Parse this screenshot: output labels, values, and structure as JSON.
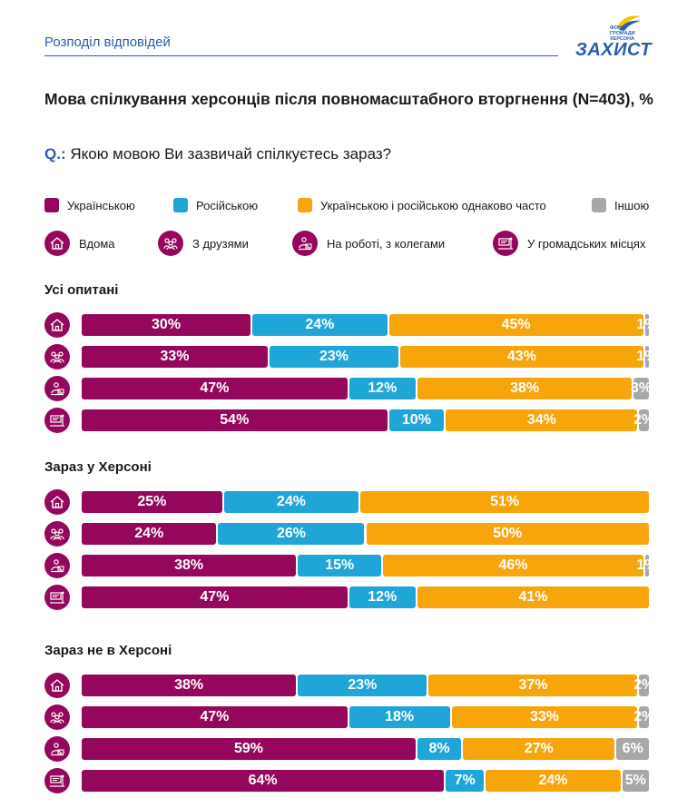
{
  "header": {
    "title": "Розподіл відповідей"
  },
  "logo": {
    "small_lines": [
      "ФОНД",
      "ГРОМАДИ",
      "ХЕРСОНА"
    ],
    "name": "ЗАХИСТ"
  },
  "title": "Мова спілкування херсонців після повномасштабного вторгнення (N=403), %",
  "question": {
    "prefix": "Q.:",
    "text": "Якою мовою Ви зазвичай спілкуєтесь зараз?"
  },
  "colors": {
    "ukrainian": "#95075c",
    "russian": "#1fa5d8",
    "both": "#f8a50c",
    "other": "#a7a7a8",
    "accent": "#2a5db0"
  },
  "legend": {
    "languages": [
      {
        "label": "Українською",
        "color": "#95075c"
      },
      {
        "label": "Російською",
        "color": "#1fa5d8"
      },
      {
        "label": "Українською і російською однаково часто",
        "color": "#f8a50c"
      },
      {
        "label": "Іншою",
        "color": "#a7a7a8"
      }
    ],
    "places": [
      {
        "label": "Вдома",
        "icon": "home-icon"
      },
      {
        "label": "З друзями",
        "icon": "friends-icon"
      },
      {
        "label": "На роботі, з колегами",
        "icon": "work-icon"
      },
      {
        "label": "У громадських місцях",
        "icon": "public-places-icon"
      }
    ]
  },
  "chart_data": {
    "type": "bar",
    "orientation": "horizontal",
    "stacked": true,
    "unit": "%",
    "series_names": [
      "Українською",
      "Російською",
      "Українською і російською однаково часто",
      "Іншою"
    ],
    "categories": [
      "Вдома",
      "З друзями",
      "На роботі, з колегами",
      "У громадських місцях"
    ],
    "groups": [
      {
        "title": "Усі опитані",
        "rows": [
          {
            "category": "Вдома",
            "values": [
              30,
              24,
              45,
              1
            ]
          },
          {
            "category": "З друзями",
            "values": [
              33,
              23,
              43,
              1
            ]
          },
          {
            "category": "На роботі, з колегами",
            "values": [
              47,
              12,
              38,
              3
            ]
          },
          {
            "category": "У громадських місцях",
            "values": [
              54,
              10,
              34,
              2
            ]
          }
        ]
      },
      {
        "title": "Зараз у Херсоні",
        "rows": [
          {
            "category": "Вдома",
            "values": [
              25,
              24,
              51,
              0
            ]
          },
          {
            "category": "З друзями",
            "values": [
              24,
              26,
              50,
              0
            ]
          },
          {
            "category": "На роботі, з колегами",
            "values": [
              38,
              15,
              46,
              1
            ]
          },
          {
            "category": "У громадських місцях",
            "values": [
              47,
              12,
              41,
              0
            ]
          }
        ]
      },
      {
        "title": "Зараз не в Херсоні",
        "rows": [
          {
            "category": "Вдома",
            "values": [
              38,
              23,
              37,
              2
            ]
          },
          {
            "category": "З друзями",
            "values": [
              47,
              18,
              33,
              2
            ]
          },
          {
            "category": "На роботі, з колегами",
            "values": [
              59,
              8,
              27,
              6
            ]
          },
          {
            "category": "У громадських місцях",
            "values": [
              64,
              7,
              24,
              5
            ]
          }
        ]
      }
    ]
  }
}
